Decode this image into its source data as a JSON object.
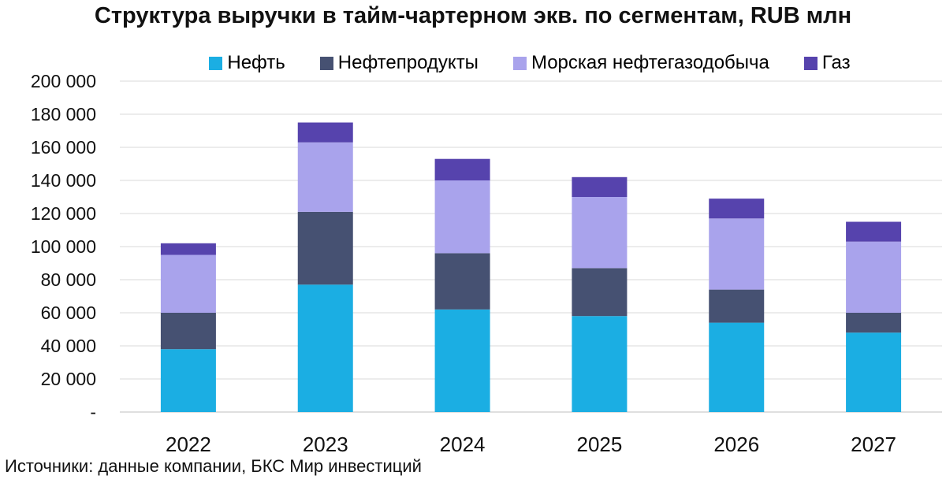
{
  "title": "Структура выручки в тайм-чартерном экв. по сегментам, RUB млн",
  "source": "Источники: данные компании, БКС Мир инвестиций",
  "chart_data": {
    "type": "bar",
    "stacked": true,
    "title": "Структура выручки в тайм-чартерном экв. по сегментам, RUB млн",
    "categories": [
      "2022",
      "2023",
      "2024",
      "2025",
      "2026",
      "2027"
    ],
    "series": [
      {
        "name": "Нефть",
        "color": "#1BAEE3",
        "values": [
          38000,
          77000,
          62000,
          58000,
          54000,
          48000
        ]
      },
      {
        "name": "Нефтепродукты",
        "color": "#465172",
        "values": [
          22000,
          44000,
          34000,
          29000,
          20000,
          12000
        ]
      },
      {
        "name": "Морская нефтегазодобыча",
        "color": "#A9A3EC",
        "values": [
          35000,
          42000,
          44000,
          43000,
          43000,
          43000
        ]
      },
      {
        "name": "Газ",
        "color": "#5643AD",
        "values": [
          7000,
          12000,
          13000,
          12000,
          12000,
          12000
        ]
      }
    ],
    "ylim": [
      0,
      200000
    ],
    "yticks": [
      0,
      20000,
      40000,
      60000,
      80000,
      100000,
      120000,
      140000,
      160000,
      180000,
      200000
    ],
    "ytick_labels": [
      "-",
      "20 000",
      "40 000",
      "60 000",
      "80 000",
      "100 000",
      "120 000",
      "140 000",
      "160 000",
      "180 000",
      "200 000"
    ],
    "grid": true,
    "legend_position": "top"
  }
}
